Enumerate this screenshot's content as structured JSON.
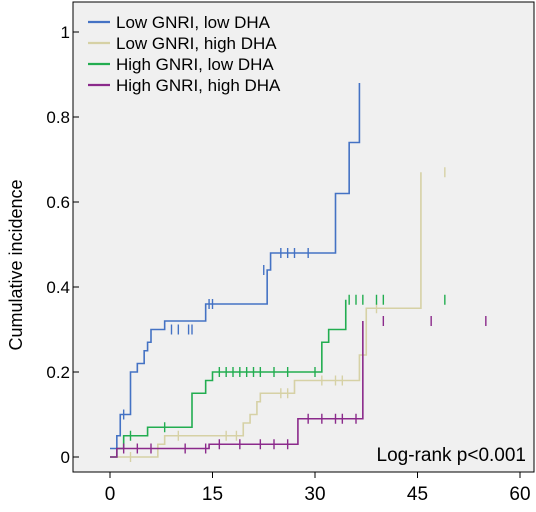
{
  "chart_data": {
    "type": "line",
    "title": "",
    "xlabel": "",
    "ylabel": "Cumulative incidence",
    "xlim": [
      0,
      60
    ],
    "ylim": [
      0,
      1
    ],
    "x_ticks": [
      0,
      15,
      30,
      45,
      60
    ],
    "y_ticks": [
      0,
      0.2,
      0.4,
      0.6,
      0.8,
      1
    ],
    "y_tick_labels": [
      "0",
      "0.2",
      "0.4",
      "0.6",
      "0.8",
      "1"
    ],
    "grid": false,
    "legend_position": "top-left",
    "annotation": "Log-rank p<0.001",
    "step": true,
    "series": [
      {
        "name": "Low GNRI, low DHA",
        "color": "#4472c4",
        "x": [
          0,
          1,
          1.5,
          3,
          4,
          5,
          5.5,
          6,
          7,
          8,
          14,
          23,
          23.5,
          33,
          35,
          36.5
        ],
        "y": [
          0.02,
          0.05,
          0.1,
          0.2,
          0.22,
          0.25,
          0.27,
          0.3,
          0.3,
          0.32,
          0.36,
          0.44,
          0.48,
          0.62,
          0.74,
          0.88
        ],
        "censor_x": [
          2,
          9,
          10,
          11.5,
          12,
          14.5,
          15,
          22.5,
          25,
          26,
          27,
          29
        ],
        "censor_y": [
          0.1,
          0.3,
          0.3,
          0.3,
          0.3,
          0.36,
          0.36,
          0.44,
          0.48,
          0.48,
          0.48,
          0.48
        ]
      },
      {
        "name": "Low GNRI, high DHA",
        "color": "#d6d1a5",
        "x": [
          0,
          7,
          8,
          19.5,
          20.5,
          21.5,
          22,
          27,
          36.5,
          37.5,
          45.5
        ],
        "y": [
          0,
          0.03,
          0.05,
          0.08,
          0.1,
          0.13,
          0.15,
          0.18,
          0.24,
          0.35,
          0.67
        ],
        "censor_x": [
          3,
          10,
          17,
          18.5,
          25,
          26,
          31,
          33,
          34,
          39,
          49
        ],
        "censor_y": [
          0,
          0.05,
          0.05,
          0.05,
          0.15,
          0.15,
          0.18,
          0.18,
          0.18,
          0.35,
          0.67
        ]
      },
      {
        "name": "High GNRI, low DHA",
        "color": "#22ad50",
        "x": [
          0,
          1,
          2,
          5,
          5.5,
          7,
          12,
          14,
          15,
          31,
          32,
          34.5
        ],
        "y": [
          0,
          0.02,
          0.05,
          0.05,
          0.07,
          0.07,
          0.15,
          0.18,
          0.2,
          0.27,
          0.3,
          0.37
        ],
        "censor_x": [
          3,
          8,
          16,
          17,
          18,
          19,
          20,
          21,
          22,
          24,
          26,
          30,
          35,
          36,
          37,
          39,
          40,
          49
        ],
        "censor_y": [
          0.05,
          0.07,
          0.2,
          0.2,
          0.2,
          0.2,
          0.2,
          0.2,
          0.2,
          0.2,
          0.2,
          0.2,
          0.37,
          0.37,
          0.37,
          0.37,
          0.37,
          0.37
        ]
      },
      {
        "name": "High GNRI, high DHA",
        "color": "#8b2a8b",
        "x": [
          0,
          1,
          14,
          14.5,
          27.5,
          37
        ],
        "y": [
          0,
          0.02,
          0.02,
          0.03,
          0.09,
          0.32
        ],
        "censor_x": [
          2,
          4,
          6,
          11,
          14,
          16,
          19,
          22,
          24,
          26,
          29,
          31,
          33,
          34,
          36,
          40,
          47,
          55
        ],
        "censor_y": [
          0.02,
          0.02,
          0.02,
          0.02,
          0.02,
          0.03,
          0.03,
          0.03,
          0.03,
          0.03,
          0.09,
          0.09,
          0.09,
          0.09,
          0.09,
          0.32,
          0.32,
          0.32
        ]
      }
    ]
  }
}
